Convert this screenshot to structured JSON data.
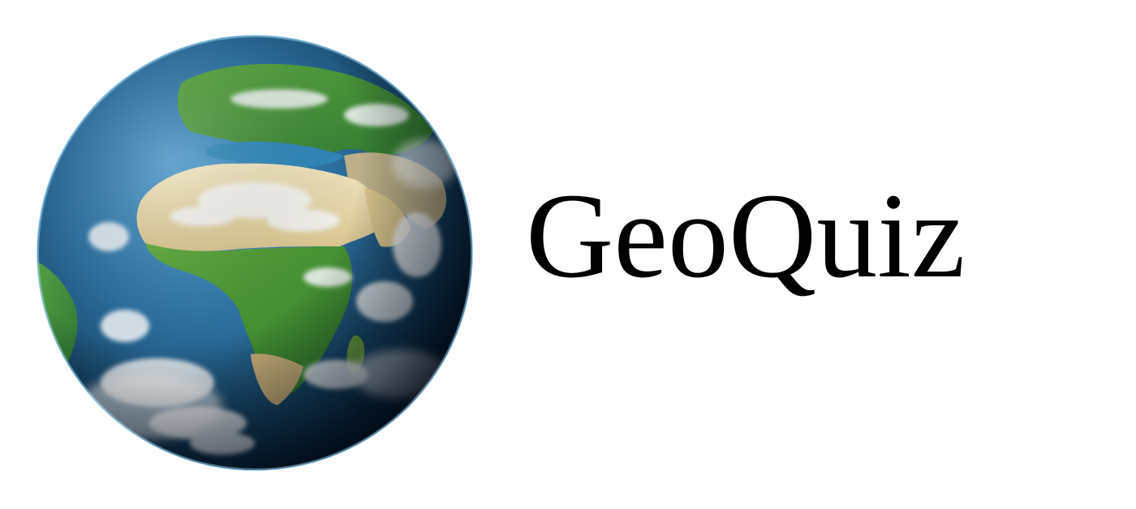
{
  "logo": {
    "title": "GeoQuiz",
    "emblem": "earth-globe-icon",
    "colors": {
      "ocean_light": "#3f8fc4",
      "ocean_dark": "#0a2a4a",
      "land_desert": "#e8d9b0",
      "land_green": "#4f9a3a",
      "cloud": "#f2f4f6",
      "text": "#000000",
      "background": "#ffffff"
    }
  }
}
